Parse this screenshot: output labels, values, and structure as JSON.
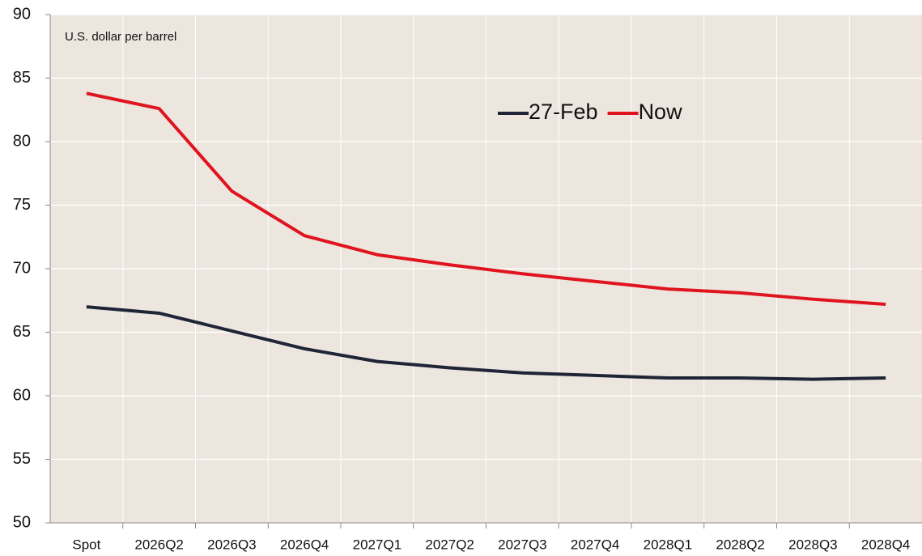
{
  "chart_data": {
    "type": "line",
    "annotation": "U.S. dollar per barrel",
    "categories": [
      "Spot",
      "2026Q2",
      "2026Q3",
      "2026Q4",
      "2027Q1",
      "2027Q2",
      "2027Q3",
      "2027Q4",
      "2028Q1",
      "2028Q2",
      "2028Q3",
      "2028Q4"
    ],
    "series": [
      {
        "name": "27-Feb",
        "color": "#1f2537",
        "values": [
          67.0,
          66.5,
          65.1,
          63.7,
          62.7,
          62.2,
          61.8,
          61.6,
          61.4,
          61.4,
          61.3,
          61.4
        ]
      },
      {
        "name": "Now",
        "color": "#e0141e",
        "values": [
          83.8,
          82.6,
          76.1,
          72.6,
          71.1,
          70.3,
          69.6,
          69.0,
          68.4,
          68.1,
          67.6,
          67.2
        ]
      }
    ],
    "ylim": [
      50,
      90
    ],
    "yticks": [
      50,
      55,
      60,
      65,
      70,
      75,
      80,
      85,
      90
    ],
    "grid": true
  }
}
